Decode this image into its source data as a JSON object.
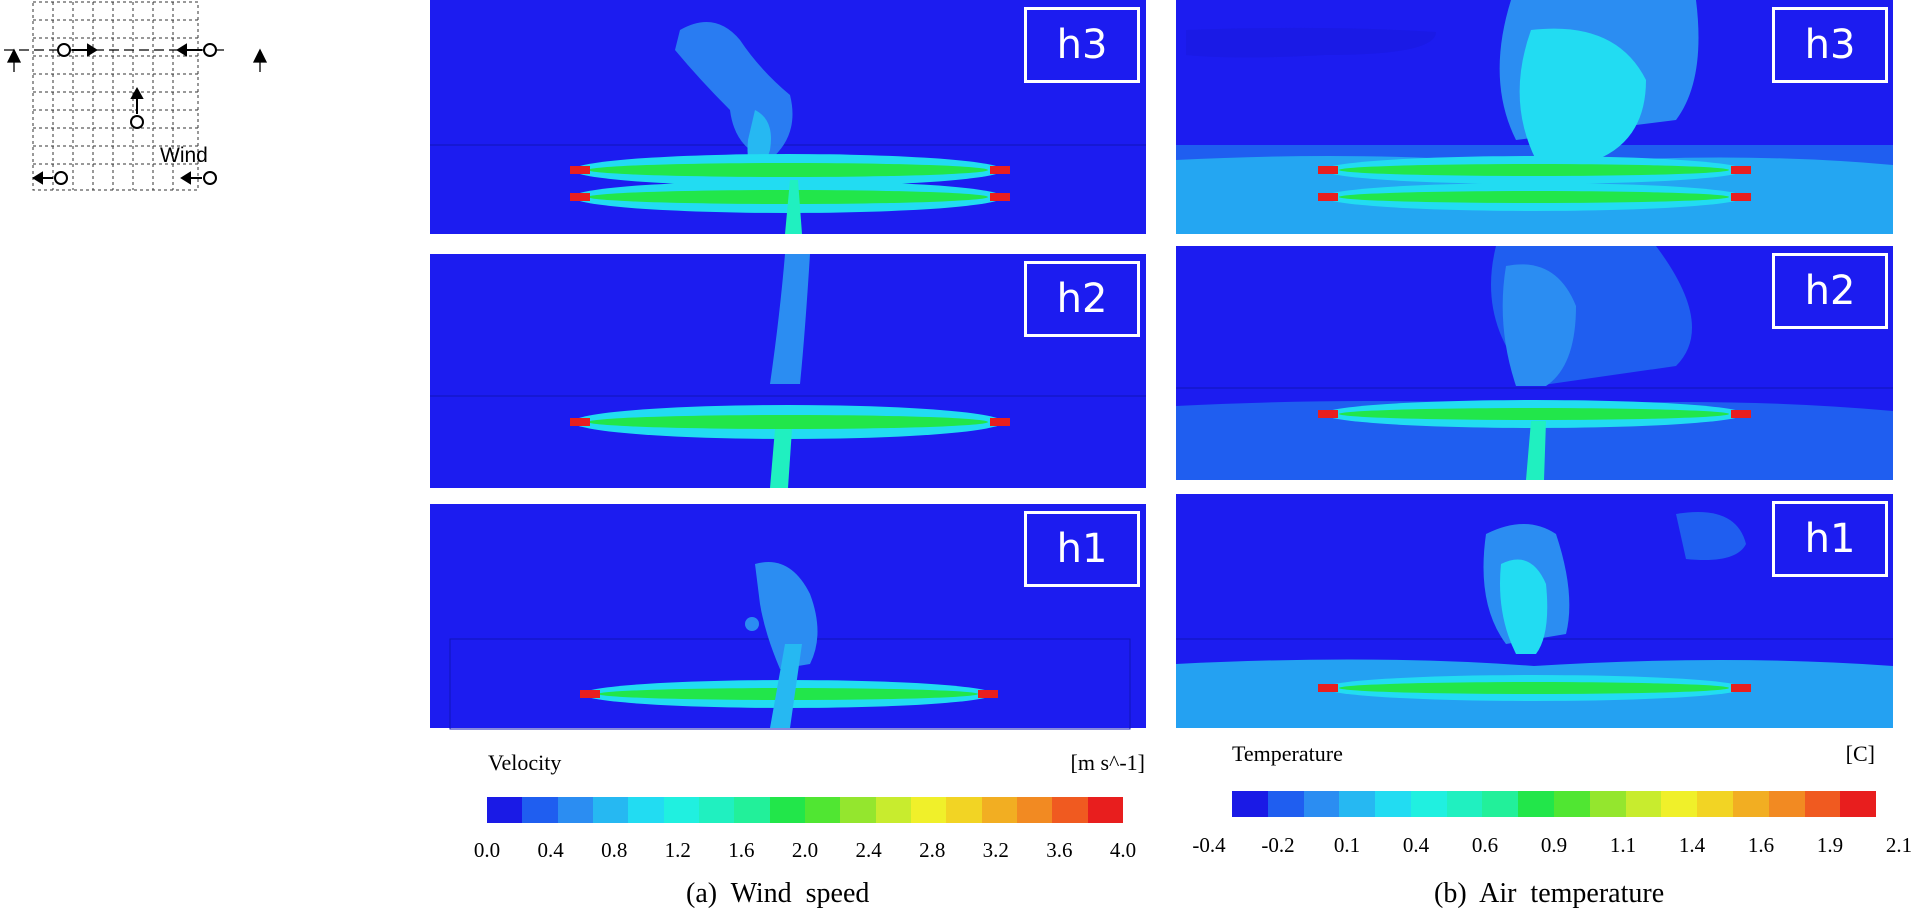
{
  "schematic": {
    "wind_label": "Wind",
    "icons": [
      "grid-icon",
      "fan-icon",
      "arrow-icon",
      "section-line-icon"
    ]
  },
  "panels_a": [
    {
      "label": "h3"
    },
    {
      "label": "h2"
    },
    {
      "label": "h1"
    }
  ],
  "panels_b": [
    {
      "label": "h3"
    },
    {
      "label": "h2"
    },
    {
      "label": "h1"
    }
  ],
  "legend_a": {
    "title": "Velocity",
    "unit": "[m s^-1]",
    "ticks": [
      "0.0",
      "0.4",
      "0.8",
      "1.2",
      "1.6",
      "2.0",
      "2.4",
      "2.8",
      "3.2",
      "3.6",
      "4.0"
    ]
  },
  "legend_b": {
    "title": "Temperature",
    "unit": "[C]",
    "ticks": [
      "-0.4",
      "-0.2",
      "0.1",
      "0.4",
      "0.6",
      "0.9",
      "1.1",
      "1.4",
      "1.6",
      "1.9",
      "2.1"
    ]
  },
  "captions": {
    "a": "(a)  Wind  speed",
    "b": "(b)  Air  temperature"
  },
  "colors": {
    "scale": [
      "#1a1ae6",
      "#1f5ef0",
      "#2b8df2",
      "#26b8f2",
      "#22dcf2",
      "#20f0e0",
      "#20f0c0",
      "#22f09a",
      "#22e64a",
      "#50e632",
      "#94e62e",
      "#c8ec2e",
      "#f0f02a",
      "#f2d424",
      "#f2ae22",
      "#f28a22",
      "#f05a20",
      "#e81e1e"
    ],
    "background": "#1c1cf0",
    "outline": "#ffffff"
  }
}
